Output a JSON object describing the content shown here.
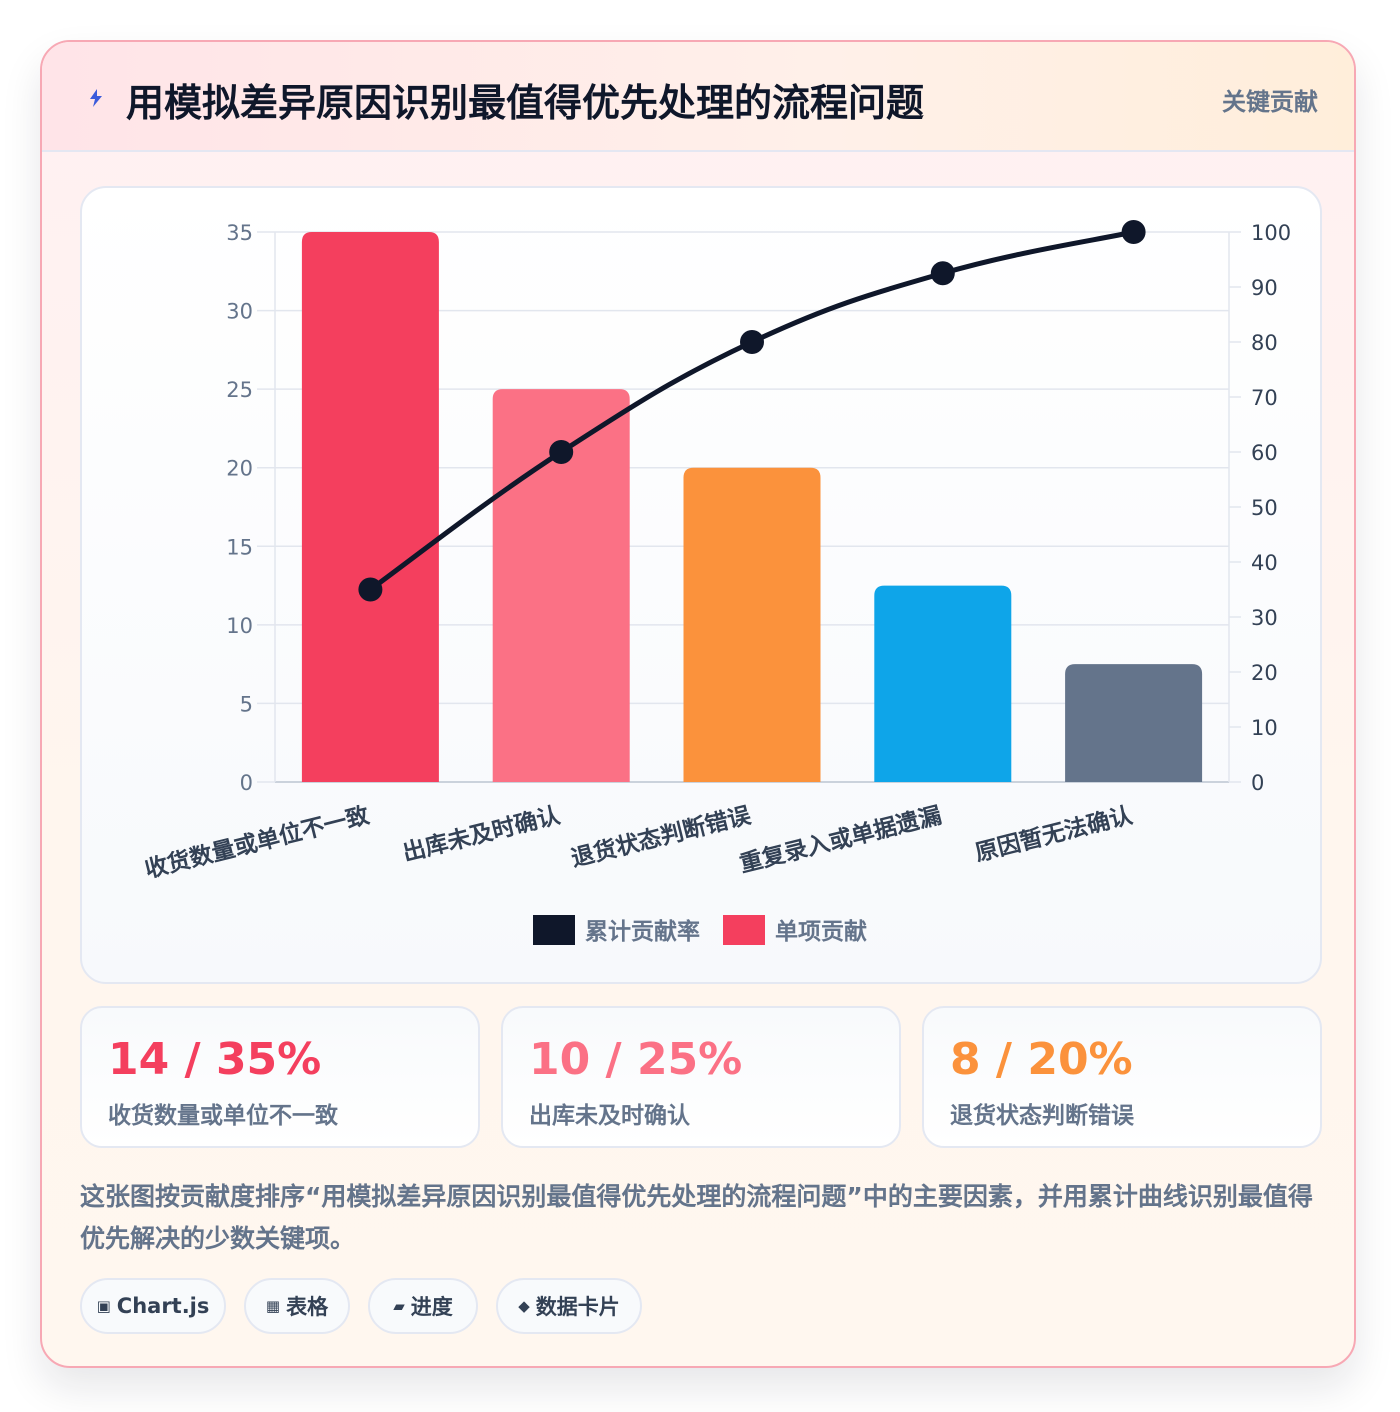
{
  "header": {
    "title": "用模拟差异原因识别最值得优先处理的流程问题",
    "badge": "关键贡献",
    "icon": "bolt-icon",
    "icon_color": "#3b5bdb"
  },
  "chart_data": {
    "type": "bar",
    "categories": [
      "收货数量或单位不一致",
      "出库未及时确认",
      "退货状态判断错误",
      "重复录入或单据遗漏",
      "原因暂无法确认"
    ],
    "series": [
      {
        "name": "累计贡献率",
        "type": "line",
        "axis": "right",
        "values": [
          35,
          60,
          80,
          92.5,
          100
        ],
        "color": "#0f172a"
      },
      {
        "name": "单项贡献",
        "type": "bar",
        "axis": "left",
        "values": [
          35,
          25,
          20,
          12.5,
          7.5
        ],
        "colors": [
          "#f43f5e",
          "#fb7185",
          "#fb923c",
          "#0ea5e9",
          "#64748b"
        ]
      }
    ],
    "y_left": {
      "min": 0,
      "max": 35,
      "ticks": [
        0,
        5,
        10,
        15,
        20,
        25,
        30,
        35
      ]
    },
    "y_right": {
      "min": 0,
      "max": 100,
      "ticks": [
        0,
        10,
        20,
        30,
        40,
        50,
        60,
        70,
        80,
        90,
        100
      ]
    },
    "grid": true,
    "legend_position": "bottom"
  },
  "stats": [
    {
      "value": "14 / 35%",
      "label": "收货数量或单位不一致",
      "color": "#f43f5e"
    },
    {
      "value": "10 / 25%",
      "label": "出库未及时确认",
      "color": "#fb7185"
    },
    {
      "value": "8 / 20%",
      "label": "退货状态判断错误",
      "color": "#fb923c"
    }
  ],
  "description": "这张图按贡献度排序“用模拟差异原因识别最值得优先处理的流程问题”中的主要因素，并用累计曲线识别最值得优先解决的少数关键项。",
  "chips": [
    {
      "icon": "▣",
      "label": "Chart.js"
    },
    {
      "icon": "▦",
      "label": "表格"
    },
    {
      "icon": "▰",
      "label": "进度"
    },
    {
      "icon": "◆",
      "label": "数据卡片"
    }
  ]
}
